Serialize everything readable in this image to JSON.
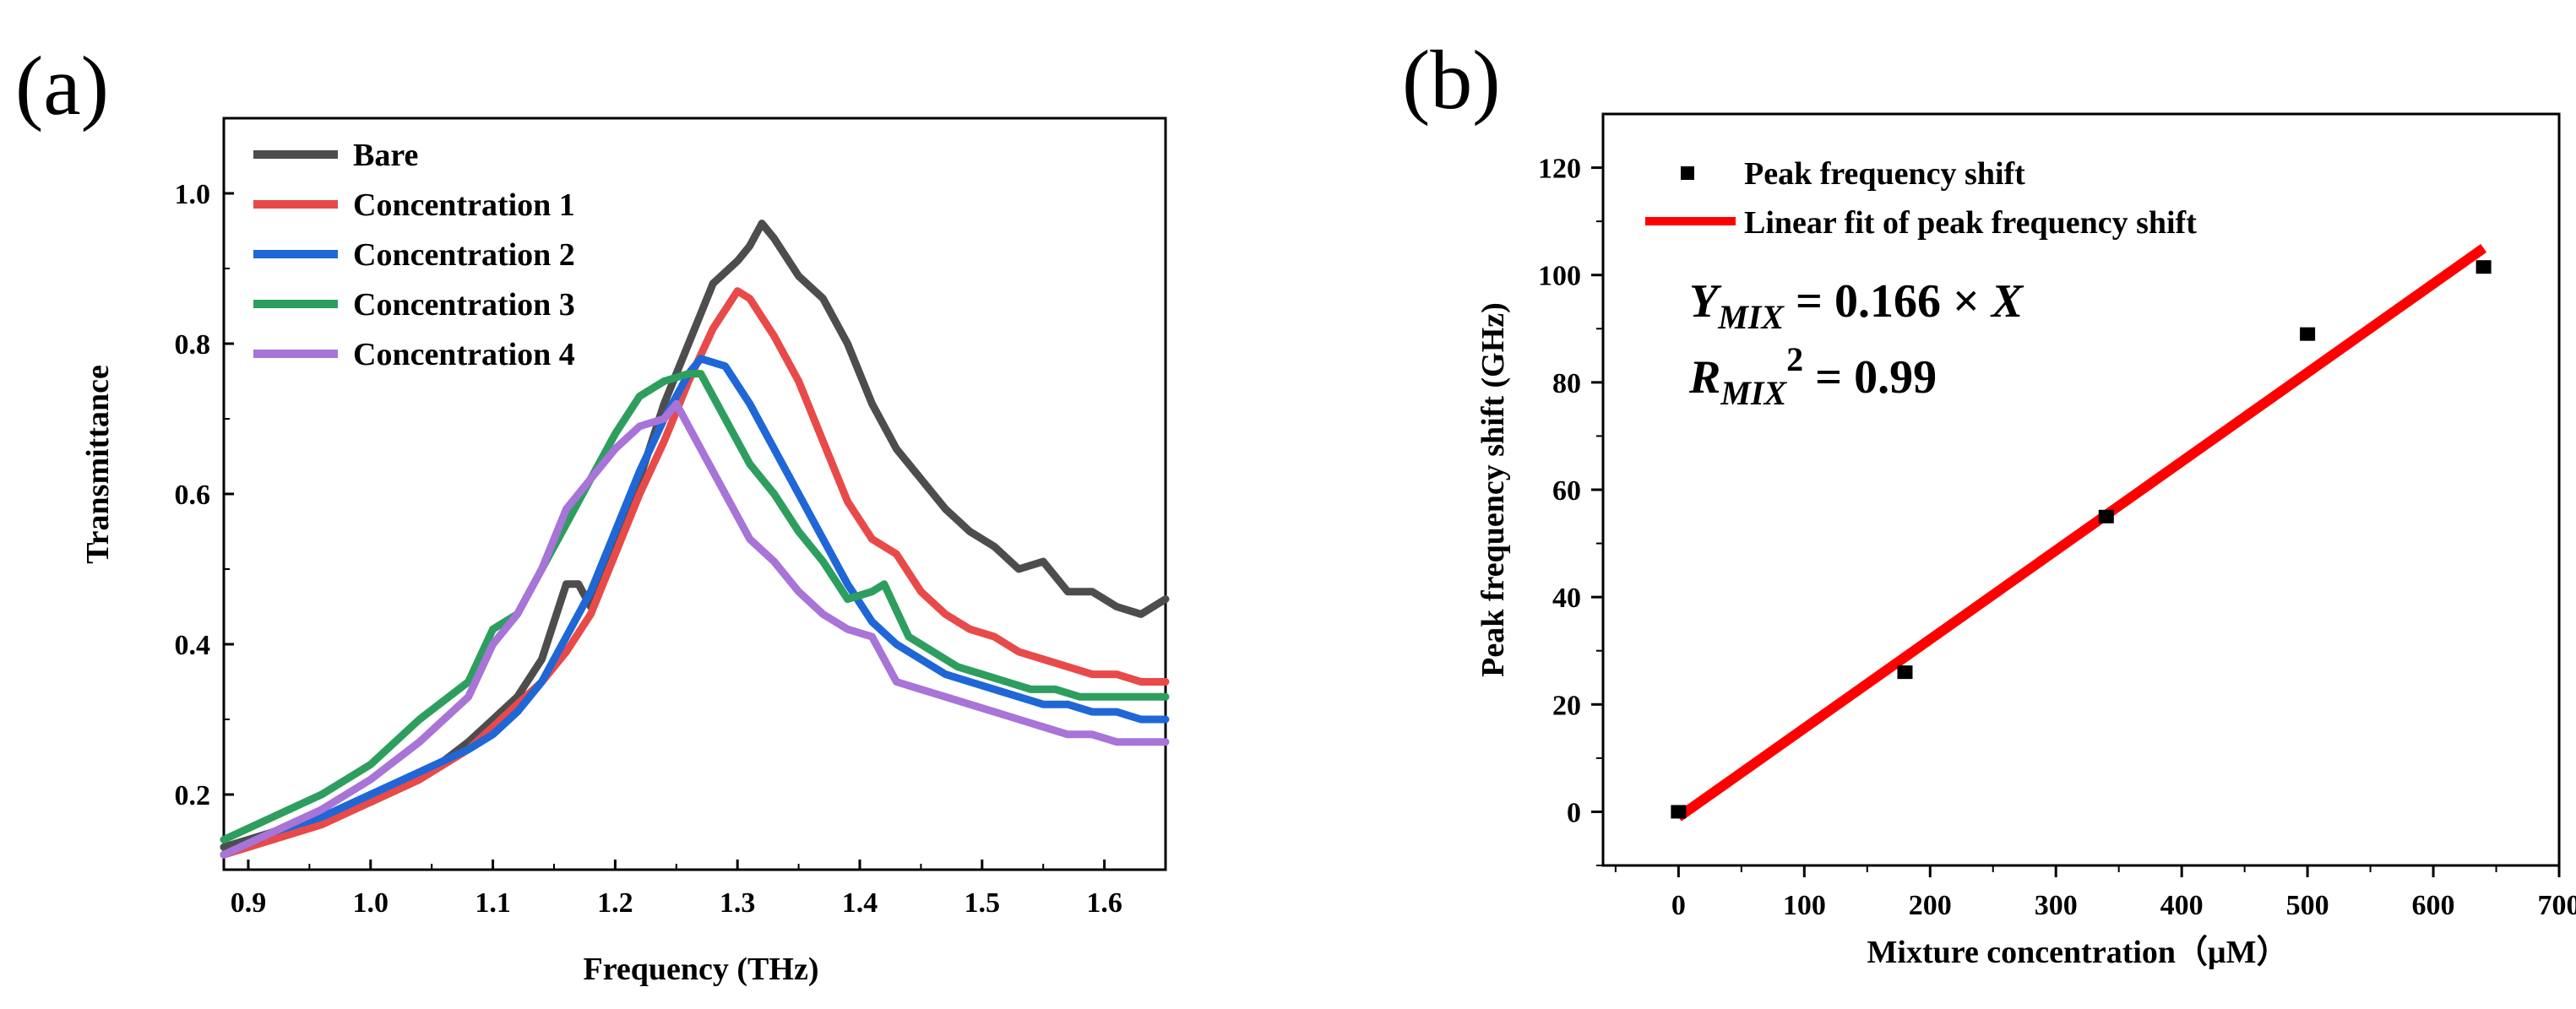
{
  "chart_data": [
    {
      "panel": "(a)",
      "type": "line",
      "xlabel": "Frequency (THz)",
      "ylabel": "Transmittance",
      "xlim": [
        0.88,
        1.65
      ],
      "ylim": [
        0.1,
        1.1
      ],
      "xticks": [
        0.9,
        1.0,
        1.1,
        1.2,
        1.3,
        1.4,
        1.5,
        1.6
      ],
      "xtick_labels": [
        "0.9",
        "1.0",
        "1.1",
        "1.2",
        "1.3",
        "1.4",
        "1.5",
        "1.6"
      ],
      "yticks": [
        0.2,
        0.4,
        0.6,
        0.8,
        1.0
      ],
      "ytick_labels": [
        "0.2",
        "0.4",
        "0.6",
        "0.8",
        "1.0"
      ],
      "legend_position": "top-left",
      "series": [
        {
          "name": "Bare",
          "color": "#4d4d4d",
          "x": [
            0.88,
            0.92,
            0.96,
            1.0,
            1.04,
            1.08,
            1.1,
            1.12,
            1.14,
            1.16,
            1.17,
            1.18,
            1.2,
            1.22,
            1.24,
            1.26,
            1.28,
            1.3,
            1.31,
            1.32,
            1.33,
            1.35,
            1.37,
            1.39,
            1.41,
            1.43,
            1.45,
            1.47,
            1.49,
            1.51,
            1.53,
            1.55,
            1.57,
            1.59,
            1.61,
            1.63,
            1.65
          ],
          "y": [
            0.13,
            0.15,
            0.17,
            0.19,
            0.22,
            0.27,
            0.3,
            0.33,
            0.38,
            0.48,
            0.48,
            0.45,
            0.54,
            0.62,
            0.72,
            0.8,
            0.88,
            0.91,
            0.93,
            0.96,
            0.94,
            0.89,
            0.86,
            0.8,
            0.72,
            0.66,
            0.62,
            0.58,
            0.55,
            0.53,
            0.5,
            0.51,
            0.47,
            0.47,
            0.45,
            0.44,
            0.46
          ]
        },
        {
          "name": "Concentration 1",
          "color": "#e84a4a",
          "x": [
            0.88,
            0.92,
            0.96,
            1.0,
            1.04,
            1.08,
            1.1,
            1.12,
            1.14,
            1.16,
            1.18,
            1.2,
            1.22,
            1.24,
            1.26,
            1.28,
            1.3,
            1.31,
            1.33,
            1.35,
            1.37,
            1.39,
            1.41,
            1.43,
            1.45,
            1.47,
            1.49,
            1.51,
            1.53,
            1.55,
            1.57,
            1.59,
            1.61,
            1.63,
            1.65
          ],
          "y": [
            0.12,
            0.14,
            0.16,
            0.19,
            0.22,
            0.26,
            0.29,
            0.32,
            0.35,
            0.39,
            0.44,
            0.52,
            0.6,
            0.67,
            0.75,
            0.82,
            0.87,
            0.86,
            0.81,
            0.75,
            0.67,
            0.59,
            0.54,
            0.52,
            0.47,
            0.44,
            0.42,
            0.41,
            0.39,
            0.38,
            0.37,
            0.36,
            0.36,
            0.35,
            0.35
          ]
        },
        {
          "name": "Concentration 2",
          "color": "#1f67d6",
          "x": [
            0.88,
            0.92,
            0.96,
            1.0,
            1.04,
            1.08,
            1.1,
            1.12,
            1.14,
            1.16,
            1.18,
            1.2,
            1.22,
            1.24,
            1.26,
            1.27,
            1.29,
            1.31,
            1.33,
            1.35,
            1.37,
            1.39,
            1.41,
            1.43,
            1.45,
            1.47,
            1.49,
            1.51,
            1.53,
            1.55,
            1.57,
            1.59,
            1.61,
            1.63,
            1.65
          ],
          "y": [
            0.12,
            0.15,
            0.17,
            0.2,
            0.23,
            0.26,
            0.28,
            0.31,
            0.35,
            0.41,
            0.47,
            0.55,
            0.63,
            0.7,
            0.76,
            0.78,
            0.77,
            0.72,
            0.66,
            0.6,
            0.54,
            0.48,
            0.43,
            0.4,
            0.38,
            0.36,
            0.35,
            0.34,
            0.33,
            0.32,
            0.32,
            0.31,
            0.31,
            0.3,
            0.3
          ]
        },
        {
          "name": "Concentration 3",
          "color": "#2e9e5f",
          "x": [
            0.88,
            0.92,
            0.96,
            1.0,
            1.04,
            1.08,
            1.1,
            1.12,
            1.14,
            1.16,
            1.18,
            1.2,
            1.22,
            1.24,
            1.26,
            1.27,
            1.29,
            1.31,
            1.33,
            1.35,
            1.37,
            1.39,
            1.41,
            1.42,
            1.44,
            1.46,
            1.48,
            1.5,
            1.52,
            1.54,
            1.56,
            1.58,
            1.6,
            1.62,
            1.65
          ],
          "y": [
            0.14,
            0.17,
            0.2,
            0.24,
            0.3,
            0.35,
            0.42,
            0.44,
            0.5,
            0.56,
            0.62,
            0.68,
            0.73,
            0.75,
            0.76,
            0.76,
            0.7,
            0.64,
            0.6,
            0.55,
            0.51,
            0.46,
            0.47,
            0.48,
            0.41,
            0.39,
            0.37,
            0.36,
            0.35,
            0.34,
            0.34,
            0.33,
            0.33,
            0.33,
            0.33
          ]
        },
        {
          "name": "Concentration 4",
          "color": "#a874d8",
          "x": [
            0.88,
            0.92,
            0.96,
            1.0,
            1.04,
            1.08,
            1.1,
            1.12,
            1.14,
            1.16,
            1.18,
            1.2,
            1.22,
            1.24,
            1.25,
            1.27,
            1.29,
            1.31,
            1.33,
            1.35,
            1.37,
            1.39,
            1.41,
            1.43,
            1.45,
            1.47,
            1.49,
            1.51,
            1.53,
            1.55,
            1.57,
            1.59,
            1.61,
            1.63,
            1.65
          ],
          "y": [
            0.12,
            0.15,
            0.18,
            0.22,
            0.27,
            0.33,
            0.4,
            0.44,
            0.5,
            0.58,
            0.62,
            0.66,
            0.69,
            0.7,
            0.72,
            0.66,
            0.6,
            0.54,
            0.51,
            0.47,
            0.44,
            0.42,
            0.41,
            0.35,
            0.34,
            0.33,
            0.32,
            0.31,
            0.3,
            0.29,
            0.28,
            0.28,
            0.27,
            0.27,
            0.27
          ]
        }
      ]
    },
    {
      "panel": "(b)",
      "type": "scatter",
      "xlabel": "Mixture concentration（μM）",
      "ylabel": "Peak frequency shift (GHz)",
      "xlim": [
        -60,
        700
      ],
      "ylim": [
        -10,
        130
      ],
      "xticks": [
        0,
        100,
        200,
        300,
        400,
        500,
        600,
        700
      ],
      "xtick_labels": [
        "0",
        "100",
        "200",
        "300",
        "400",
        "500",
        "600",
        "700"
      ],
      "yticks": [
        0,
        20,
        40,
        60,
        80,
        100,
        120
      ],
      "ytick_labels": [
        "0",
        "20",
        "40",
        "60",
        "80",
        "100",
        "120"
      ],
      "legend_position": "top-left",
      "series": [
        {
          "name": "Peak frequency shift",
          "kind": "points",
          "color": "#000000",
          "x": [
            0,
            180,
            340,
            500,
            640
          ],
          "y": [
            0,
            26,
            55,
            89,
            101.5
          ],
          "error": [
            1,
            1,
            0.8,
            1,
            0.8
          ]
        },
        {
          "name": "Linear fit of peak frequency shift",
          "kind": "line",
          "color": "#ff0000",
          "x": [
            0,
            640
          ],
          "y": [
            -1,
            105
          ]
        }
      ],
      "equation": {
        "y_sym": "Y",
        "y_sub": "MIX",
        "y_rhs": " = 0.166 × ",
        "x_sym": "X",
        "r_sym": "R",
        "r_sub": "MIX",
        "r_sup": "2",
        "r_rhs": " = 0.99"
      }
    }
  ]
}
